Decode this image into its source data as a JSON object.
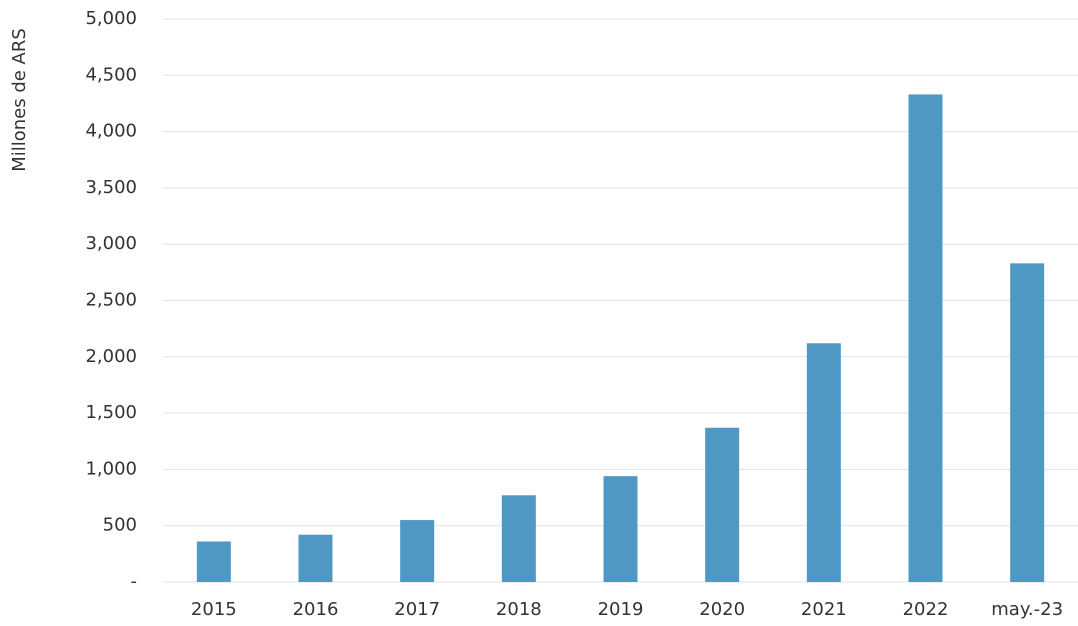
{
  "chart_data": {
    "type": "bar",
    "y_label": "Millones de ARS",
    "categories": [
      "2015",
      "2016",
      "2017",
      "2018",
      "2019",
      "2020",
      "2021",
      "2022",
      "may.-23"
    ],
    "values": [
      360,
      420,
      550,
      770,
      940,
      1370,
      2120,
      4330,
      2830
    ],
    "color": "#4f98c3",
    "ylim": [
      0,
      5000
    ],
    "yticks": [
      {
        "value": 0,
        "label": "-"
      },
      500,
      {
        "value": 1000,
        "label": "1,000"
      },
      {
        "value": 1500,
        "label": "1,500"
      },
      {
        "value": 2000,
        "label": "2,000"
      },
      {
        "value": 2500,
        "label": "2,500"
      },
      {
        "value": 3000,
        "label": "3,000"
      },
      {
        "value": 3500,
        "label": "3,500"
      },
      {
        "value": 4000,
        "label": "4,000"
      },
      {
        "value": 4500,
        "label": "4,500"
      },
      {
        "value": 5000,
        "label": "5,000"
      }
    ],
    "grid": true
  }
}
